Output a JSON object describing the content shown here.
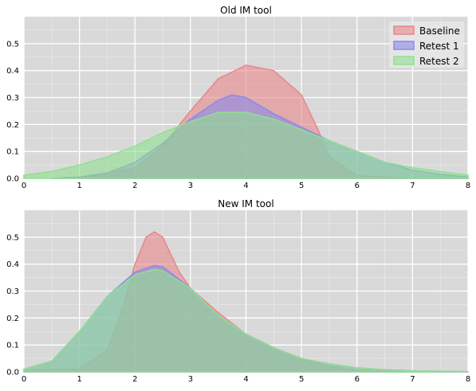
{
  "chart_data": [
    {
      "type": "area",
      "title": "Old IM tool",
      "xlabel": "",
      "ylabel": "",
      "xlim": [
        0,
        8
      ],
      "ylim": [
        0,
        0.6
      ],
      "x_ticks": [
        "0",
        "1",
        "2",
        "3",
        "4",
        "5",
        "6",
        "7",
        "8"
      ],
      "y_ticks": [
        "0.0",
        "0.1",
        "0.2",
        "0.3",
        "0.4",
        "0.5"
      ],
      "grid": true,
      "legend": "top-right",
      "series": [
        {
          "name": "Baseline",
          "color": "#e8878a",
          "x": [
            1.0,
            1.5,
            2.0,
            2.5,
            3.0,
            3.5,
            4.0,
            4.5,
            5.0,
            5.3,
            5.5,
            6.0,
            6.5,
            7.0,
            7.5,
            8.0
          ],
          "y": [
            0.0,
            0.02,
            0.04,
            0.12,
            0.25,
            0.37,
            0.42,
            0.4,
            0.31,
            0.18,
            0.08,
            0.01,
            0.005,
            0.0,
            0.0,
            0.0
          ]
        },
        {
          "name": "Retest 1",
          "color": "#8a8aea",
          "x": [
            0.5,
            1.0,
            1.5,
            2.0,
            2.5,
            3.0,
            3.5,
            3.75,
            4.0,
            4.5,
            5.0,
            5.5,
            6.0,
            6.5,
            7.0,
            7.5,
            8.0
          ],
          "y": [
            0.0,
            0.005,
            0.02,
            0.06,
            0.13,
            0.22,
            0.29,
            0.31,
            0.3,
            0.24,
            0.19,
            0.14,
            0.1,
            0.06,
            0.03,
            0.015,
            0.005
          ]
        },
        {
          "name": "Retest 2",
          "color": "#90e090",
          "x": [
            0,
            0.5,
            1.0,
            1.5,
            2.0,
            2.5,
            3.0,
            3.5,
            4.0,
            4.5,
            5.0,
            5.5,
            6.0,
            6.5,
            7.0,
            7.5,
            8.0
          ],
          "y": [
            0.012,
            0.025,
            0.05,
            0.08,
            0.12,
            0.17,
            0.21,
            0.245,
            0.245,
            0.22,
            0.18,
            0.14,
            0.1,
            0.06,
            0.04,
            0.025,
            0.012
          ]
        }
      ]
    },
    {
      "type": "area",
      "title": "New IM tool",
      "xlabel": "",
      "ylabel": "",
      "xlim": [
        0,
        8
      ],
      "ylim": [
        0,
        0.6
      ],
      "x_ticks": [
        "0",
        "1",
        "2",
        "3",
        "4",
        "5",
        "6",
        "7",
        "8"
      ],
      "y_ticks": [
        "0.0",
        "0.1",
        "0.2",
        "0.3",
        "0.4",
        "0.5"
      ],
      "grid": true,
      "legend": "none",
      "series": [
        {
          "name": "Baseline",
          "color": "#e8878a",
          "x": [
            0,
            1.0,
            1.5,
            1.8,
            2.0,
            2.2,
            2.35,
            2.5,
            2.8,
            3.0,
            3.5,
            4.0,
            4.5,
            5.0,
            5.5,
            6.0,
            7.0,
            8.0
          ],
          "y": [
            0.005,
            0.01,
            0.08,
            0.25,
            0.4,
            0.5,
            0.52,
            0.5,
            0.37,
            0.31,
            0.22,
            0.14,
            0.09,
            0.05,
            0.02,
            0.005,
            0.0,
            0.0
          ]
        },
        {
          "name": "Retest 1",
          "color": "#8a8aea",
          "x": [
            0,
            0.5,
            1.0,
            1.5,
            2.0,
            2.35,
            2.5,
            3.0,
            3.5,
            4.0,
            4.5,
            5.0,
            5.5,
            6.0,
            6.5,
            7.0,
            8.0
          ],
          "y": [
            0.01,
            0.04,
            0.15,
            0.28,
            0.37,
            0.395,
            0.39,
            0.31,
            0.21,
            0.14,
            0.09,
            0.05,
            0.03,
            0.015,
            0.008,
            0.004,
            0.001
          ]
        },
        {
          "name": "Retest 2",
          "color": "#90e090",
          "x": [
            0,
            0.5,
            1.0,
            1.5,
            2.0,
            2.35,
            2.5,
            3.0,
            3.5,
            4.0,
            4.5,
            5.0,
            5.5,
            6.0,
            6.5,
            7.0,
            8.0
          ],
          "y": [
            0.01,
            0.04,
            0.15,
            0.28,
            0.36,
            0.38,
            0.375,
            0.31,
            0.21,
            0.14,
            0.09,
            0.05,
            0.03,
            0.015,
            0.008,
            0.004,
            0.001
          ]
        }
      ]
    }
  ]
}
